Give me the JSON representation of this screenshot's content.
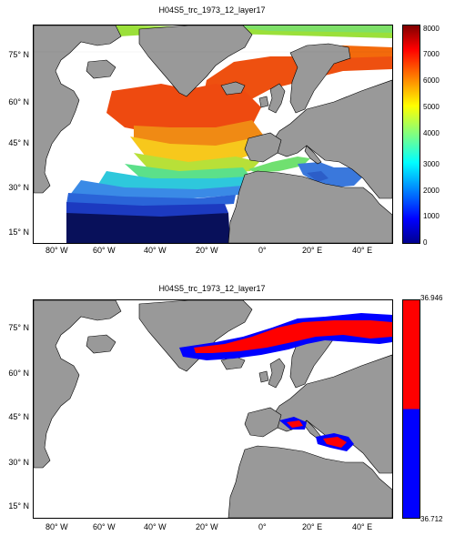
{
  "panels": [
    {
      "title": "H04S5_trc_1973_12_layer17",
      "xticks": [
        "80° W",
        "60° W",
        "40° W",
        "20° W",
        "0°",
        "20° E",
        "40° E"
      ],
      "yticks": [
        "75° N",
        "60° N",
        "45° N",
        "30° N",
        "15° N"
      ],
      "colorbar": {
        "colormap": "jet",
        "ticks": [
          "8000",
          "7000",
          "6000",
          "5000",
          "4000",
          "3000",
          "2000",
          "1000",
          "0"
        ],
        "range": [
          0,
          8000
        ]
      }
    },
    {
      "title": "H04S5_trc_1973_12_layer17",
      "xticks": [
        "80° W",
        "60° W",
        "40° W",
        "20° W",
        "0°",
        "20° E",
        "40° E"
      ],
      "yticks": [
        "75° N",
        "60° N",
        "45° N",
        "30° N",
        "15° N"
      ],
      "colorbar": {
        "colormap": "two-tone red/blue",
        "max_label": "36.946",
        "min_label": "36.712",
        "colors": [
          "#ff0000",
          "#0000ff"
        ]
      }
    }
  ],
  "colors": {
    "land": "#999999",
    "ocean_nodata": "#ffffff"
  }
}
